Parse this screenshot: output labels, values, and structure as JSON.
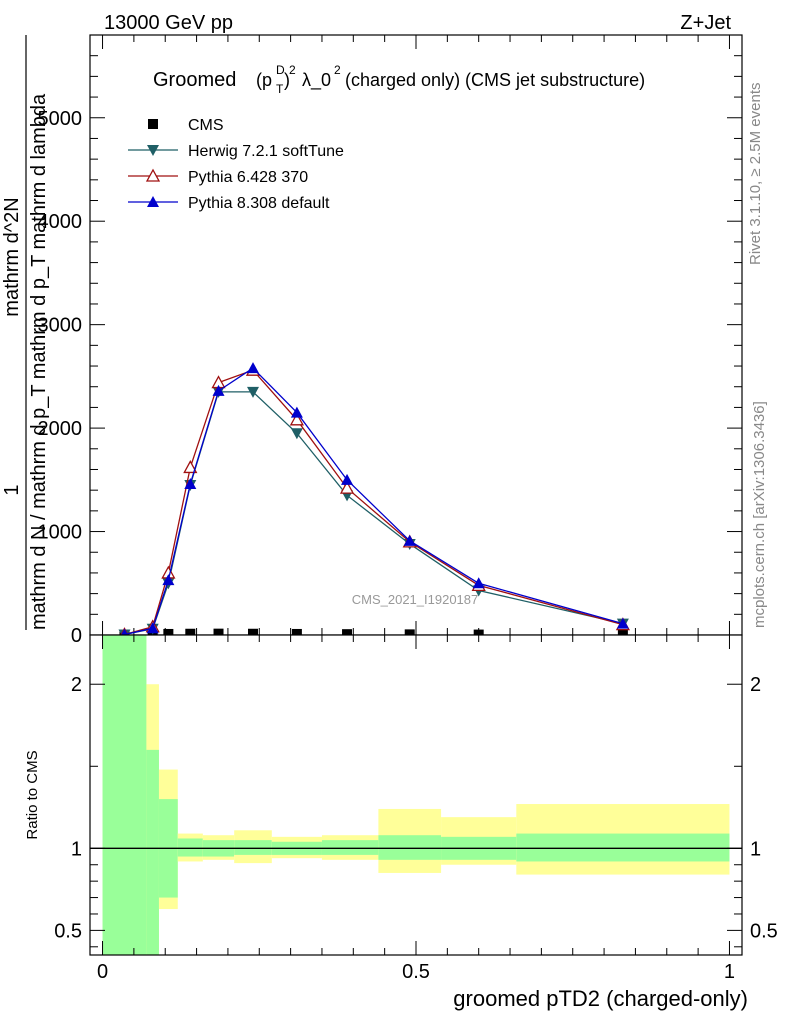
{
  "header": {
    "energy_label": "13000 GeV pp",
    "process_label": "Z+Jet",
    "rivet_label": "Rivet 3.1.10, ≥ 2.5M events",
    "mcplots_label": "mcplots.cern.ch [arXiv:1306.3436]",
    "analysis_watermark": "CMS_2021_I1920187"
  },
  "main": {
    "title_prefix": "Groomed",
    "title_p": "(p",
    "title_T": "T",
    "title_D": "D",
    "title_close": ")",
    "title_sq": "2",
    "title_lambda": "λ_0",
    "title_rest": " (charged only) (CMS jet substructure)",
    "ylabel_1": "1",
    "ylabel_denominator": "mathrm d N / mathrm d p_T mathrm d p_T mathrm d lambda",
    "ylabel_numerator": "mathrm d^2N",
    "ytick_labels": [
      "0",
      "1000",
      "2000",
      "3000",
      "4000",
      "5000"
    ]
  },
  "ratio": {
    "ylabel": "Ratio to CMS",
    "ytick_labels": [
      "0.5",
      "1",
      "2"
    ],
    "xtick_labels": [
      "0",
      "0.5",
      "1"
    ],
    "xlabel": "groomed pTD2 (charged-only)"
  },
  "legend": [
    {
      "name": "CMS",
      "marker": "square",
      "color": "#000000"
    },
    {
      "name": "Herwig 7.2.1 softTune",
      "marker": "triangle-down",
      "color": "#1f5f66"
    },
    {
      "name": "Pythia 6.428 370",
      "marker": "triangle-open",
      "color": "#a01010"
    },
    {
      "name": "Pythia 8.308 default",
      "marker": "triangle-up",
      "color": "#0000cc"
    }
  ],
  "colors": {
    "band_inner": "#99ff99",
    "band_outer": "#ffff99",
    "herwig": "#1f5f66",
    "pythia6": "#a01010",
    "pythia8": "#0000cc",
    "data": "#000000"
  },
  "chart_data": [
    {
      "type": "line",
      "panel": "main",
      "title": "Groomed (p_T^D)^2 λ_0 (charged only) (CMS jet substructure)",
      "xlim": [
        -0.02,
        1.02
      ],
      "ylim": [
        0,
        5800
      ],
      "yticks": [
        0,
        1000,
        2000,
        3000,
        4000,
        5000
      ],
      "legend_position": "top-left",
      "x": [
        0.035,
        0.08,
        0.105,
        0.14,
        0.185,
        0.24,
        0.31,
        0.39,
        0.49,
        0.6,
        0.83
      ],
      "series": [
        {
          "name": "CMS",
          "values": [
            3,
            8,
            10,
            12,
            13,
            12,
            10,
            8,
            6,
            4,
            2
          ]
        },
        {
          "name": "Herwig 7.2.1 softTune",
          "values": [
            5,
            60,
            500,
            1450,
            2350,
            2350,
            1950,
            1350,
            880,
            430,
            110
          ]
        },
        {
          "name": "Pythia 6.428 370",
          "values": [
            5,
            80,
            600,
            1620,
            2440,
            2560,
            2080,
            1420,
            900,
            480,
            100
          ]
        },
        {
          "name": "Pythia 8.308 default",
          "values": [
            5,
            65,
            530,
            1460,
            2360,
            2580,
            2150,
            1500,
            910,
            500,
            110
          ]
        }
      ]
    },
    {
      "type": "area",
      "panel": "ratio",
      "ylabel": "Ratio to CMS",
      "xlim": [
        -0.02,
        1.02
      ],
      "ylim": [
        0.35,
        2.3
      ],
      "yticks": [
        0.5,
        1,
        2
      ],
      "bins": [
        {
          "x0": 0.0,
          "x1": 0.07,
          "inner": [
            0.35,
            2.3
          ],
          "outer": [
            0.35,
            2.3
          ]
        },
        {
          "x0": 0.07,
          "x1": 0.09,
          "inner": [
            0.35,
            1.6
          ],
          "outer": [
            0.35,
            2.0
          ]
        },
        {
          "x0": 0.09,
          "x1": 0.12,
          "inner": [
            0.7,
            1.3
          ],
          "outer": [
            0.63,
            1.48
          ]
        },
        {
          "x0": 0.12,
          "x1": 0.16,
          "inner": [
            0.95,
            1.06
          ],
          "outer": [
            0.92,
            1.09
          ]
        },
        {
          "x0": 0.16,
          "x1": 0.21,
          "inner": [
            0.95,
            1.05
          ],
          "outer": [
            0.93,
            1.08
          ]
        },
        {
          "x0": 0.21,
          "x1": 0.27,
          "inner": [
            0.96,
            1.05
          ],
          "outer": [
            0.91,
            1.11
          ]
        },
        {
          "x0": 0.27,
          "x1": 0.35,
          "inner": [
            0.96,
            1.04
          ],
          "outer": [
            0.94,
            1.07
          ]
        },
        {
          "x0": 0.35,
          "x1": 0.44,
          "inner": [
            0.96,
            1.05
          ],
          "outer": [
            0.93,
            1.08
          ]
        },
        {
          "x0": 0.44,
          "x1": 0.54,
          "inner": [
            0.93,
            1.08
          ],
          "outer": [
            0.85,
            1.24
          ]
        },
        {
          "x0": 0.54,
          "x1": 0.66,
          "inner": [
            0.93,
            1.07
          ],
          "outer": [
            0.9,
            1.19
          ]
        },
        {
          "x0": 0.66,
          "x1": 1.0,
          "inner": [
            0.92,
            1.09
          ],
          "outer": [
            0.84,
            1.27
          ]
        }
      ]
    }
  ]
}
